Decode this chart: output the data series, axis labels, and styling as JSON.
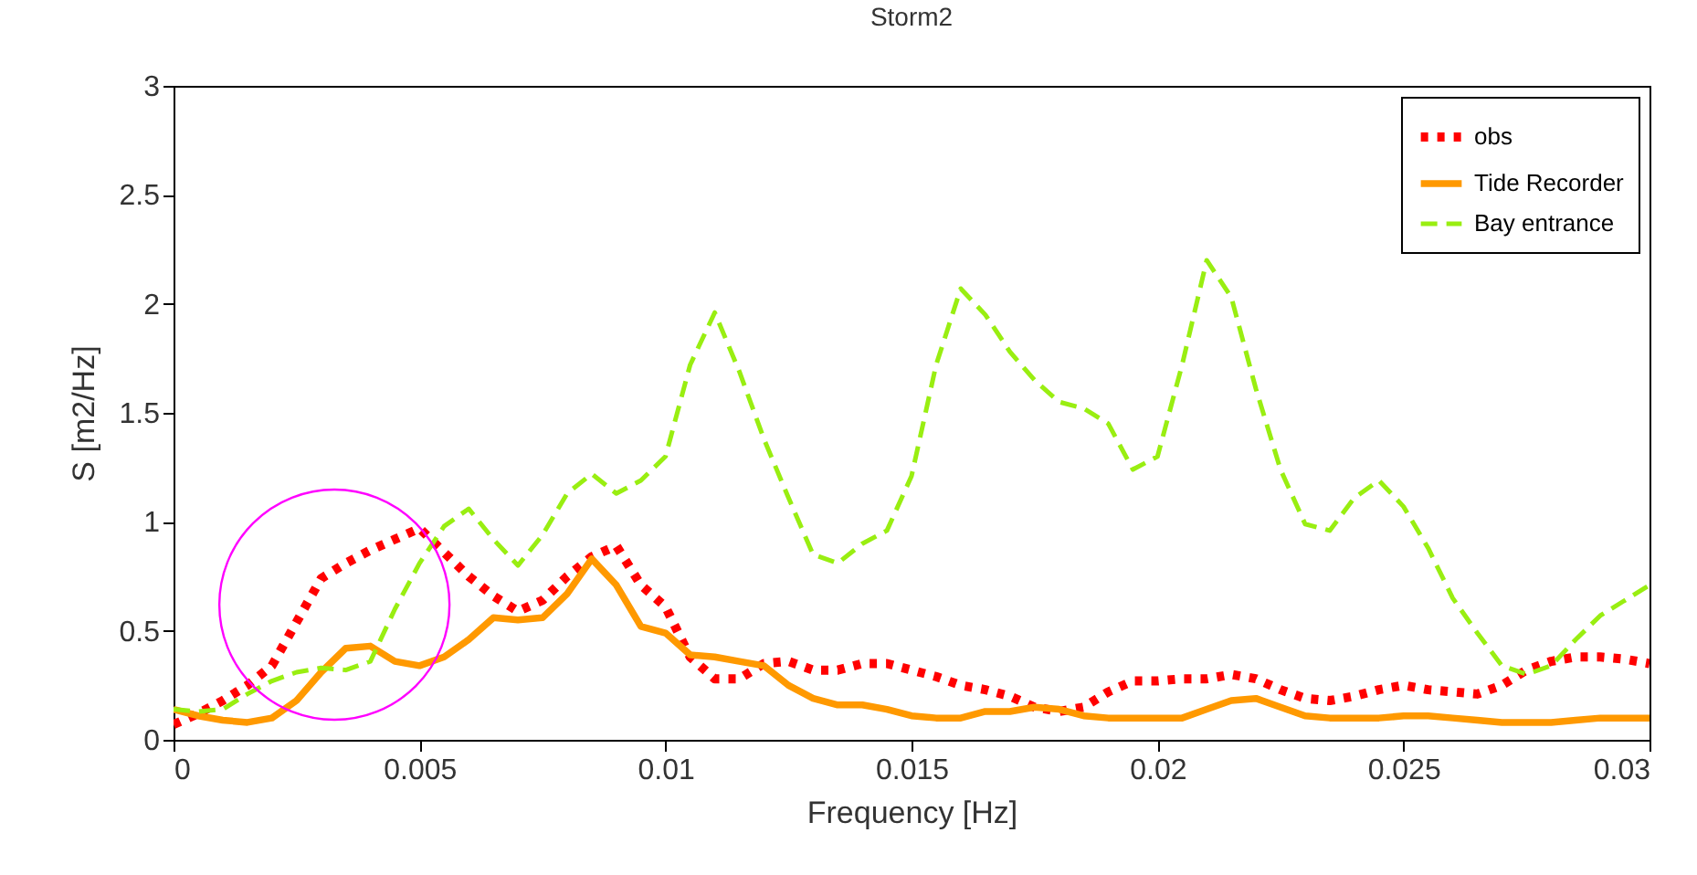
{
  "chart_data": {
    "type": "line",
    "title": "Storm2",
    "xlabel": "Frequency [Hz]",
    "ylabel": "S [m2/Hz]",
    "xlim": [
      0,
      0.03
    ],
    "xticks": [
      0,
      0.005,
      0.01,
      0.015,
      0.02,
      0.025,
      0.03
    ],
    "ylim": [
      0,
      3
    ],
    "yticks": [
      0,
      0.5,
      1,
      1.5,
      2,
      2.5,
      3
    ],
    "grid": false,
    "legend": "top right",
    "marker": "none",
    "x": [
      0,
      0.0005,
      0.001,
      0.0015,
      0.002,
      0.0025,
      0.003,
      0.0035,
      0.004,
      0.0045,
      0.005,
      0.0055,
      0.006,
      0.0065,
      0.007,
      0.0075,
      0.008,
      0.0085,
      0.009,
      0.0095,
      0.01,
      0.0105,
      0.011,
      0.0115,
      0.012,
      0.0125,
      0.013,
      0.0135,
      0.014,
      0.0145,
      0.015,
      0.0155,
      0.016,
      0.0165,
      0.017,
      0.0175,
      0.018,
      0.0185,
      0.019,
      0.0195,
      0.02,
      0.0205,
      0.021,
      0.0215,
      0.022,
      0.0225,
      0.023,
      0.0235,
      0.024,
      0.0245,
      0.025,
      0.0255,
      0.026,
      0.0265,
      0.027,
      0.0275,
      0.028,
      0.0285,
      0.029,
      0.0295,
      0.03
    ],
    "series": [
      {
        "name": "obs",
        "color": "#ff0000",
        "line_style": "dotted",
        "values": [
          0.07,
          0.12,
          0.18,
          0.25,
          0.34,
          0.54,
          0.74,
          0.81,
          0.87,
          0.92,
          0.97,
          0.86,
          0.75,
          0.66,
          0.59,
          0.64,
          0.75,
          0.84,
          0.89,
          0.71,
          0.61,
          0.38,
          0.28,
          0.28,
          0.35,
          0.36,
          0.32,
          0.32,
          0.35,
          0.35,
          0.32,
          0.29,
          0.25,
          0.23,
          0.2,
          0.15,
          0.13,
          0.15,
          0.22,
          0.27,
          0.27,
          0.28,
          0.28,
          0.3,
          0.28,
          0.23,
          0.19,
          0.18,
          0.2,
          0.23,
          0.25,
          0.23,
          0.22,
          0.21,
          0.25,
          0.32,
          0.36,
          0.38,
          0.38,
          0.37,
          0.35
        ]
      },
      {
        "name": "Tide Recorder",
        "color": "#ff9900",
        "line_style": "solid",
        "values": [
          0.14,
          0.11,
          0.09,
          0.08,
          0.1,
          0.18,
          0.31,
          0.42,
          0.43,
          0.36,
          0.34,
          0.38,
          0.46,
          0.56,
          0.55,
          0.56,
          0.67,
          0.83,
          0.71,
          0.52,
          0.49,
          0.39,
          0.38,
          0.36,
          0.34,
          0.25,
          0.19,
          0.16,
          0.16,
          0.14,
          0.11,
          0.1,
          0.1,
          0.13,
          0.13,
          0.15,
          0.14,
          0.11,
          0.1,
          0.1,
          0.1,
          0.1,
          0.14,
          0.18,
          0.19,
          0.15,
          0.11,
          0.1,
          0.1,
          0.1,
          0.11,
          0.11,
          0.1,
          0.09,
          0.08,
          0.08,
          0.08,
          0.09,
          0.1,
          0.1,
          0.1
        ]
      },
      {
        "name": "Bay entrance",
        "color": "#99ee11",
        "line_style": "dashed",
        "values": [
          0.14,
          0.13,
          0.14,
          0.21,
          0.27,
          0.31,
          0.33,
          0.32,
          0.36,
          0.6,
          0.81,
          0.98,
          1.06,
          0.92,
          0.8,
          0.94,
          1.13,
          1.22,
          1.13,
          1.19,
          1.3,
          1.72,
          1.96,
          1.69,
          1.38,
          1.11,
          0.85,
          0.81,
          0.9,
          0.96,
          1.21,
          1.72,
          2.07,
          1.95,
          1.78,
          1.65,
          1.55,
          1.52,
          1.45,
          1.24,
          1.3,
          1.72,
          2.2,
          2.03,
          1.61,
          1.24,
          0.99,
          0.96,
          1.11,
          1.19,
          1.07,
          0.88,
          0.65,
          0.49,
          0.34,
          0.3,
          0.34,
          0.46,
          0.57,
          0.64,
          0.71
        ]
      }
    ]
  }
}
